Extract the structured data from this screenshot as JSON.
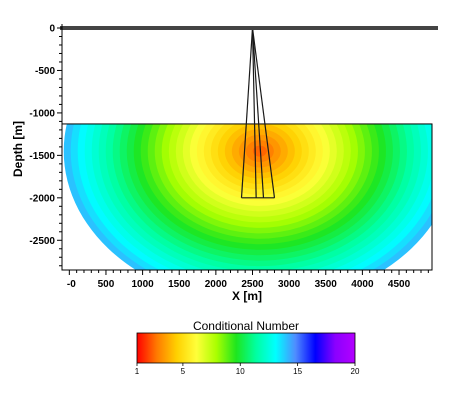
{
  "chart_data": {
    "type": "heatmap",
    "xlabel": "X [m]",
    "ylabel": "Depth [m]",
    "xlim": [
      -100,
      4950
    ],
    "ylim": [
      -2850,
      0
    ],
    "x_ticks": [
      0,
      500,
      1000,
      1500,
      2000,
      2500,
      3000,
      3500,
      4000,
      4500
    ],
    "x_tick_labels": [
      "-0",
      "500",
      "1000",
      "1500",
      "2000",
      "2500",
      "3000",
      "3500",
      "4000",
      "4500"
    ],
    "y_ticks": [
      0,
      -500,
      -1000,
      -1500,
      -2000,
      -2500
    ],
    "y_tick_labels": [
      "0",
      "-500",
      "-1000",
      "-1500",
      "-2000",
      "-2500"
    ],
    "surface": {
      "depth": 0
    },
    "field": {
      "top_depth": -1130,
      "bottom_depth": -2850,
      "x_range": [
        -100,
        4950
      ],
      "center_x": 2600,
      "center_depth": -1450,
      "value_min": 1,
      "value_max": 20,
      "core_value": 2,
      "edge_value": 14
    },
    "wells": [
      {
        "top": [
          2500,
          0
        ],
        "bottom": [
          2350,
          -2000
        ]
      },
      {
        "top": [
          2500,
          0
        ],
        "bottom": [
          2550,
          -2000
        ]
      },
      {
        "top": [
          2500,
          0
        ],
        "bottom": [
          2650,
          -2000
        ]
      },
      {
        "top": [
          2500,
          0
        ],
        "bottom": [
          2800,
          -2000
        ]
      }
    ],
    "colorbar": {
      "title": "Conditional Number",
      "min": 1,
      "max": 20,
      "ticks": [
        1,
        5,
        10,
        15,
        20
      ],
      "tick_labels": [
        "1",
        "5",
        "10",
        "15",
        "20"
      ],
      "colors": [
        "#ff0000",
        "#ff7a00",
        "#ffd000",
        "#ffff3a",
        "#aaff00",
        "#1ee61e",
        "#00ffa0",
        "#00ffff",
        "#4f8cff",
        "#0000ff",
        "#8a00ff",
        "#b400ff"
      ]
    }
  }
}
